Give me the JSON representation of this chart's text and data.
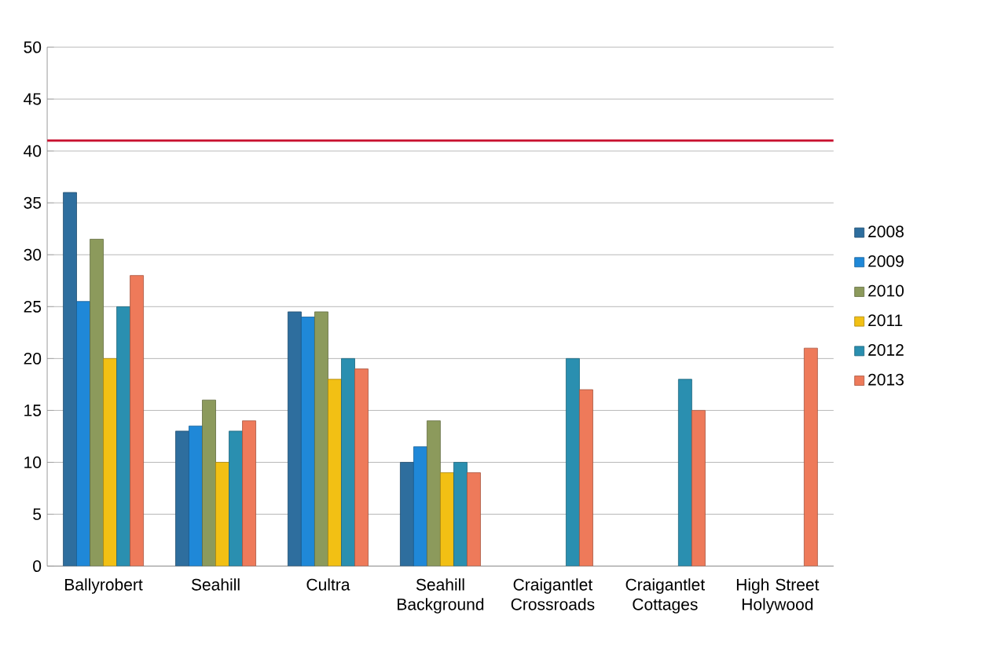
{
  "chart_data": {
    "type": "bar",
    "categories": [
      "Ballyrobert",
      "Seahill",
      "Cultra",
      "Seahill Background",
      "Craigantlet Crossroads",
      "Craigantlet Cottages",
      "High Street Holywood"
    ],
    "series": [
      {
        "name": "2008",
        "color": "#2e6e9e",
        "values": [
          36,
          13,
          24.5,
          10,
          null,
          null,
          null
        ]
      },
      {
        "name": "2009",
        "color": "#1f88d8",
        "values": [
          25.5,
          13.5,
          24,
          11.5,
          null,
          null,
          null
        ]
      },
      {
        "name": "2010",
        "color": "#8c9a5c",
        "values": [
          31.5,
          16,
          24.5,
          14,
          null,
          null,
          null
        ]
      },
      {
        "name": "2011",
        "color": "#f2c014",
        "values": [
          20,
          10,
          18,
          9,
          null,
          null,
          null
        ]
      },
      {
        "name": "2012",
        "color": "#2a8fb0",
        "values": [
          25,
          13,
          20,
          10,
          20,
          18,
          null
        ]
      },
      {
        "name": "2013",
        "color": "#ee7a5a",
        "values": [
          28,
          14,
          19,
          9,
          17,
          15,
          21
        ]
      }
    ],
    "ylim": [
      0,
      50
    ],
    "yticks": [
      0,
      5,
      10,
      15,
      20,
      25,
      30,
      35,
      40,
      45,
      50
    ],
    "ref_lines": [
      {
        "axis": "y",
        "value": 41,
        "color": "#c8102e"
      }
    ],
    "grid": "y",
    "legend": "right"
  }
}
